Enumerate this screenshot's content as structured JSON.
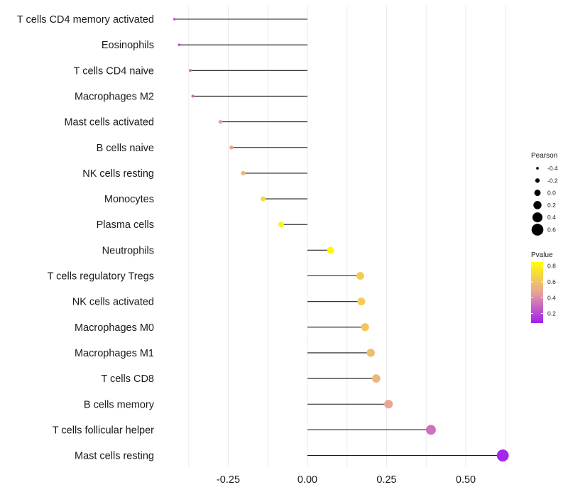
{
  "chart_data": {
    "type": "lollipop",
    "title": "",
    "xlabel": "",
    "ylabel": "",
    "xlim": [
      -0.5,
      0.65
    ],
    "x_ticks": [
      -0.25,
      0.0,
      0.25,
      0.5
    ],
    "x_tick_labels": [
      "-0.25",
      "0.00",
      "0.25",
      "0.50"
    ],
    "grid": true,
    "points": [
      {
        "label": "T cells CD4 memory activated",
        "pearson": -0.42,
        "pvalue": 0.22
      },
      {
        "label": "Eosinophils",
        "pearson": -0.405,
        "pvalue": 0.2
      },
      {
        "label": "T cells CD4 naive",
        "pearson": -0.37,
        "pvalue": 0.3
      },
      {
        "label": "Macrophages M2",
        "pearson": -0.362,
        "pvalue": 0.3
      },
      {
        "label": "Mast cells activated",
        "pearson": -0.275,
        "pvalue": 0.45
      },
      {
        "label": "B cells naive",
        "pearson": -0.24,
        "pvalue": 0.48
      },
      {
        "label": "NK cells resting",
        "pearson": -0.203,
        "pvalue": 0.55
      },
      {
        "label": "Monocytes",
        "pearson": -0.14,
        "pvalue": 0.7
      },
      {
        "label": "Plasma cells",
        "pearson": -0.083,
        "pvalue": 0.8
      },
      {
        "label": "Neutrophils",
        "pearson": 0.073,
        "pvalue": 0.82
      },
      {
        "label": "T cells regulatory  Tregs ",
        "pearson": 0.167,
        "pvalue": 0.64
      },
      {
        "label": "NK cells activated",
        "pearson": 0.17,
        "pvalue": 0.64
      },
      {
        "label": "Macrophages M0",
        "pearson": 0.182,
        "pvalue": 0.62
      },
      {
        "label": "Macrophages M1",
        "pearson": 0.2,
        "pvalue": 0.58
      },
      {
        "label": "T cells CD8",
        "pearson": 0.217,
        "pvalue": 0.55
      },
      {
        "label": "B cells memory",
        "pearson": 0.256,
        "pvalue": 0.48
      },
      {
        "label": "T cells follicular helper",
        "pearson": 0.39,
        "pvalue": 0.32
      },
      {
        "label": "Mast cells resting",
        "pearson": 0.617,
        "pvalue": 0.1
      }
    ],
    "legend_size": {
      "title": "Pearson",
      "values": [
        -0.4,
        -0.2,
        0.0,
        0.2,
        0.4,
        0.6
      ],
      "labels": [
        "-0.4",
        "-0.2",
        "0.0",
        "0.2",
        "0.4",
        "0.6"
      ]
    },
    "legend_color": {
      "title": "Pvalue",
      "range": [
        0.08,
        0.85
      ],
      "ticks": [
        0.2,
        0.4,
        0.6,
        0.8
      ],
      "tick_labels": [
        "0.2",
        "0.4",
        "0.6",
        "0.8"
      ],
      "low_color": "#a020f0",
      "mid_color": "#e8a29a",
      "high_color": "#ffff00"
    }
  }
}
